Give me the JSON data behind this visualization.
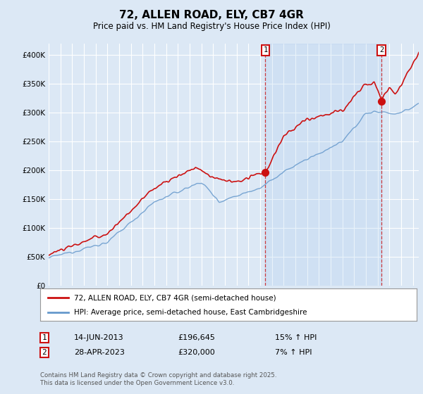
{
  "title": "72, ALLEN ROAD, ELY, CB7 4GR",
  "subtitle": "Price paid vs. HM Land Registry's House Price Index (HPI)",
  "ylim": [
    0,
    420000
  ],
  "yticks": [
    0,
    50000,
    100000,
    150000,
    200000,
    250000,
    300000,
    350000,
    400000
  ],
  "ytick_labels": [
    "£0",
    "£50K",
    "£100K",
    "£150K",
    "£200K",
    "£250K",
    "£300K",
    "£350K",
    "£400K"
  ],
  "xlim_start": 1995,
  "xlim_end": 2026.5,
  "background_color": "#dce8f5",
  "plot_bg": "#dce8f5",
  "shade_bg": "#dce8f5",
  "grid_color": "#ffffff",
  "red_color": "#cc1111",
  "blue_color": "#6699cc",
  "annotation1_date": "14-JUN-2013",
  "annotation1_price": "£196,645",
  "annotation1_hpi": "15% ↑ HPI",
  "annotation2_date": "28-APR-2023",
  "annotation2_price": "£320,000",
  "annotation2_hpi": "7% ↑ HPI",
  "legend_label_red": "72, ALLEN ROAD, ELY, CB7 4GR (semi-detached house)",
  "legend_label_blue": "HPI: Average price, semi-detached house, East Cambridgeshire",
  "footer": "Contains HM Land Registry data © Crown copyright and database right 2025.\nThis data is licensed under the Open Government Licence v3.0.",
  "marker1_x": 2013.45,
  "marker1_y": 196645,
  "marker2_x": 2023.33,
  "marker2_y": 320000,
  "vline1_x": 2013.45,
  "vline2_x": 2023.33,
  "shade_alpha": 0.25
}
